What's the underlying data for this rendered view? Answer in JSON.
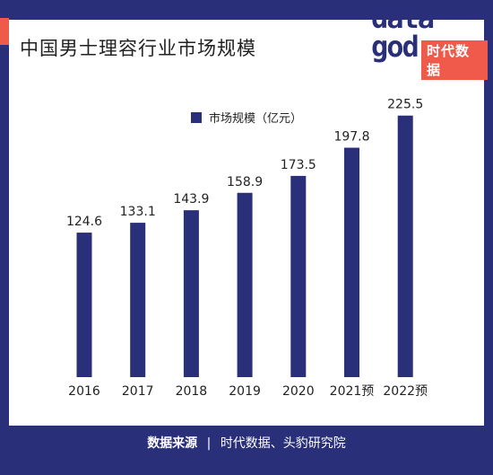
{
  "title": "中国男士理容行业市场规模",
  "logo": {
    "word_line1": "data",
    "word_line2": "god",
    "tag": "时代数据"
  },
  "colors": {
    "bar": "#2a2f7a",
    "frame": "#2a2f7a",
    "accent": "#ef5a4a"
  },
  "chart_data": {
    "type": "bar",
    "categories": [
      "2016",
      "2017",
      "2018",
      "2019",
      "2020",
      "2021预",
      "2022预"
    ],
    "series": [
      {
        "name": "市场规模（亿元）",
        "values": [
          124.6,
          133.1,
          143.9,
          158.9,
          173.5,
          197.8,
          225.5
        ]
      }
    ],
    "ylim": [
      0,
      240
    ],
    "legend": "top-center",
    "grid": false
  },
  "footer": {
    "source_label": "数据来源",
    "separator": "|",
    "source_text": "时代数据、头豹研究院"
  }
}
